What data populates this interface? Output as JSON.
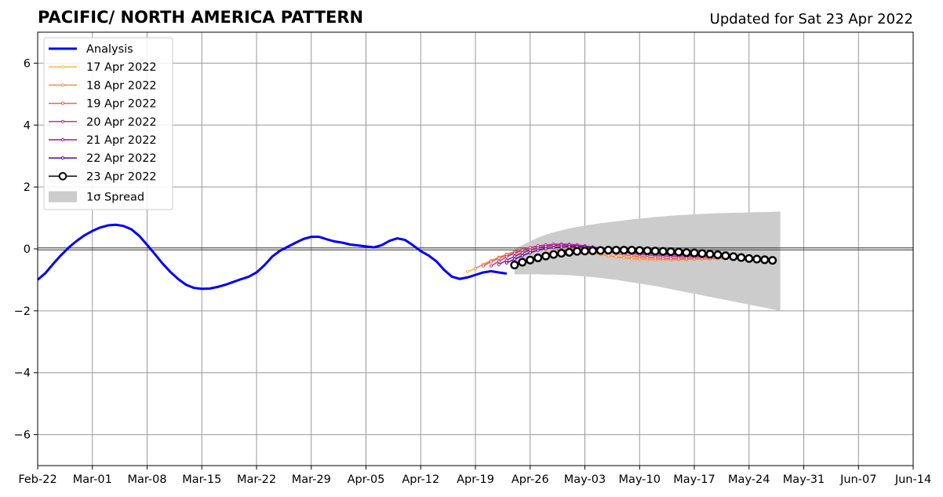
{
  "chart_data": {
    "type": "line",
    "title": "PACIFIC/ NORTH AMERICA PATTERN",
    "subtitle": "Updated for Sat 23 Apr 2022",
    "xlabel": "",
    "ylabel": "",
    "ylim": [
      -7,
      7
    ],
    "xlim": [
      "2022-02-22",
      "2022-06-14"
    ],
    "grid": true,
    "legend_position": "top-left",
    "x_ticks": [
      "Feb-22",
      "Mar-01",
      "Mar-08",
      "Mar-15",
      "Mar-22",
      "Mar-29",
      "Apr-05",
      "Apr-12",
      "Apr-19",
      "Apr-26",
      "May-03",
      "May-10",
      "May-17",
      "May-24",
      "May-31",
      "Jun-07",
      "Jun-14"
    ],
    "y_ticks": [
      6,
      4,
      2,
      0,
      -2,
      -4,
      -6
    ],
    "y_tick_labels": [
      "6",
      "4",
      "2",
      "0",
      "−2",
      "−4",
      "−6"
    ],
    "analysis": {
      "name": "Analysis",
      "color": "#0000ff",
      "dates": [
        "2022-02-22",
        "2022-02-23",
        "2022-02-24",
        "2022-02-25",
        "2022-02-26",
        "2022-02-27",
        "2022-02-28",
        "2022-03-01",
        "2022-03-02",
        "2022-03-03",
        "2022-03-04",
        "2022-03-05",
        "2022-03-06",
        "2022-03-07",
        "2022-03-08",
        "2022-03-09",
        "2022-03-10",
        "2022-03-11",
        "2022-03-12",
        "2022-03-13",
        "2022-03-14",
        "2022-03-15",
        "2022-03-16",
        "2022-03-17",
        "2022-03-18",
        "2022-03-19",
        "2022-03-20",
        "2022-03-21",
        "2022-03-22",
        "2022-03-23",
        "2022-03-24",
        "2022-03-25",
        "2022-03-26",
        "2022-03-27",
        "2022-03-28",
        "2022-03-29",
        "2022-03-30",
        "2022-03-31",
        "2022-04-01",
        "2022-04-02",
        "2022-04-03",
        "2022-04-04",
        "2022-04-05",
        "2022-04-06",
        "2022-04-07",
        "2022-04-08",
        "2022-04-09",
        "2022-04-10",
        "2022-04-11",
        "2022-04-12",
        "2022-04-13",
        "2022-04-14",
        "2022-04-15",
        "2022-04-16",
        "2022-04-17",
        "2022-04-18",
        "2022-04-19",
        "2022-04-20",
        "2022-04-21",
        "2022-04-22",
        "2022-04-23"
      ],
      "values": [
        -1.0,
        -0.78,
        -0.48,
        -0.2,
        0.05,
        0.26,
        0.44,
        0.58,
        0.69,
        0.76,
        0.78,
        0.74,
        0.63,
        0.42,
        0.13,
        -0.17,
        -0.48,
        -0.75,
        -0.98,
        -1.16,
        -1.26,
        -1.29,
        -1.28,
        -1.23,
        -1.16,
        -1.07,
        -0.98,
        -0.9,
        -0.76,
        -0.53,
        -0.25,
        -0.06,
        0.07,
        0.2,
        0.32,
        0.39,
        0.39,
        0.31,
        0.24,
        0.2,
        0.14,
        0.11,
        0.08,
        0.05,
        0.12,
        0.26,
        0.34,
        0.29,
        0.12,
        -0.07,
        -0.21,
        -0.4,
        -0.68,
        -0.9,
        -0.97,
        -0.92,
        -0.84,
        -0.76,
        -0.72,
        -0.76,
        -0.8
      ]
    },
    "series": [
      {
        "name": "17 Apr 2022",
        "color": "#fcb93c",
        "start": "2022-04-18",
        "values": [
          -0.73,
          -0.63,
          -0.5,
          -0.4,
          -0.3,
          -0.22,
          -0.15,
          -0.1,
          -0.06,
          -0.03,
          -0.03,
          -0.04,
          -0.06,
          -0.08,
          -0.1,
          -0.13,
          -0.16,
          -0.19,
          -0.22,
          -0.25,
          -0.27,
          -0.28,
          -0.29,
          -0.3,
          -0.3,
          -0.3,
          -0.3,
          -0.3,
          -0.3,
          -0.3,
          -0.3,
          -0.3
        ]
      },
      {
        "name": "18 Apr 2022",
        "color": "#f58d4c",
        "start": "2022-04-19",
        "values": [
          -0.63,
          -0.5,
          -0.38,
          -0.27,
          -0.17,
          -0.09,
          -0.02,
          0.03,
          0.06,
          0.08,
          0.08,
          0.05,
          0.02,
          -0.02,
          -0.07,
          -0.12,
          -0.17,
          -0.22,
          -0.26,
          -0.29,
          -0.32,
          -0.33,
          -0.34,
          -0.35,
          -0.35,
          -0.35,
          -0.35,
          -0.34,
          -0.33,
          -0.32,
          -0.31,
          -0.3
        ]
      },
      {
        "name": "19 Apr 2022",
        "color": "#e16462",
        "start": "2022-04-20",
        "values": [
          -0.55,
          -0.42,
          -0.3,
          -0.2,
          -0.1,
          -0.02,
          0.04,
          0.08,
          0.11,
          0.12,
          0.12,
          0.1,
          0.07,
          0.03,
          -0.01,
          -0.06,
          -0.1,
          -0.15,
          -0.19,
          -0.22,
          -0.25,
          -0.27,
          -0.29,
          -0.3,
          -0.31,
          -0.32,
          -0.32,
          -0.32,
          -0.32,
          -0.32,
          -0.31,
          -0.3
        ]
      },
      {
        "name": "20 Apr 2022",
        "color": "#bd3786",
        "start": "2022-04-21",
        "values": [
          -0.55,
          -0.4,
          -0.26,
          -0.14,
          -0.04,
          0.04,
          0.1,
          0.13,
          0.15,
          0.16,
          0.15,
          0.13,
          0.1,
          0.06,
          0.02,
          -0.03,
          -0.07,
          -0.11,
          -0.15,
          -0.18,
          -0.2,
          -0.22,
          -0.23,
          -0.24,
          -0.25,
          -0.26,
          -0.26,
          -0.26,
          -0.26,
          -0.26,
          -0.26,
          -0.26
        ]
      },
      {
        "name": "21 Apr 2022",
        "color": "#9c179e",
        "start": "2022-04-22",
        "values": [
          -0.5,
          -0.37,
          -0.24,
          -0.13,
          -0.04,
          0.03,
          0.08,
          0.11,
          0.12,
          0.12,
          0.11,
          0.09,
          0.06,
          0.03,
          -0.01,
          -0.05,
          -0.08,
          -0.11,
          -0.13,
          -0.15,
          -0.17,
          -0.18,
          -0.19,
          -0.2,
          -0.21,
          -0.22,
          -0.22,
          -0.23,
          -0.23,
          -0.24,
          -0.24,
          -0.25
        ]
      },
      {
        "name": "22 Apr 2022",
        "color": "#5c01a6",
        "start": "2022-04-23",
        "values": [
          -0.45,
          -0.33,
          -0.22,
          -0.12,
          -0.04,
          0.01,
          0.04,
          0.06,
          0.07,
          0.07,
          0.06,
          0.04,
          0.02,
          0.0,
          -0.03,
          -0.05,
          -0.07,
          -0.09,
          -0.11,
          -0.13,
          -0.14,
          -0.16,
          -0.17,
          -0.18,
          -0.19,
          -0.2,
          -0.21,
          -0.22,
          -0.23,
          -0.24,
          -0.25,
          -0.26
        ]
      },
      {
        "name": "23 Apr 2022",
        "color": "#000000",
        "marker": "open-circle",
        "start": "2022-04-24",
        "values": [
          -0.52,
          -0.43,
          -0.36,
          -0.29,
          -0.23,
          -0.18,
          -0.14,
          -0.11,
          -0.08,
          -0.07,
          -0.06,
          -0.05,
          -0.04,
          -0.04,
          -0.04,
          -0.04,
          -0.05,
          -0.06,
          -0.07,
          -0.08,
          -0.09,
          -0.1,
          -0.12,
          -0.13,
          -0.15,
          -0.17,
          -0.19,
          -0.22,
          -0.25,
          -0.28,
          -0.31,
          -0.33,
          -0.35,
          -0.37
        ]
      }
    ],
    "spread": {
      "name": "1σ Spread",
      "color": "#cccccc",
      "start": "2022-04-24",
      "upper": [
        0.0,
        0.12,
        0.25,
        0.36,
        0.46,
        0.54,
        0.6,
        0.66,
        0.71,
        0.75,
        0.79,
        0.83,
        0.86,
        0.89,
        0.92,
        0.95,
        0.98,
        1.0,
        1.03,
        1.05,
        1.07,
        1.09,
        1.1,
        1.12,
        1.13,
        1.14,
        1.15,
        1.16,
        1.17,
        1.17,
        1.18,
        1.19,
        1.19,
        1.2,
        1.21
      ],
      "lower": [
        -0.82,
        -0.82,
        -0.82,
        -0.82,
        -0.83,
        -0.83,
        -0.84,
        -0.85,
        -0.87,
        -0.89,
        -0.91,
        -0.94,
        -0.97,
        -1.0,
        -1.04,
        -1.08,
        -1.12,
        -1.16,
        -1.2,
        -1.25,
        -1.3,
        -1.35,
        -1.4,
        -1.45,
        -1.5,
        -1.55,
        -1.6,
        -1.65,
        -1.7,
        -1.75,
        -1.8,
        -1.85,
        -1.9,
        -1.95,
        -2.0
      ]
    }
  }
}
